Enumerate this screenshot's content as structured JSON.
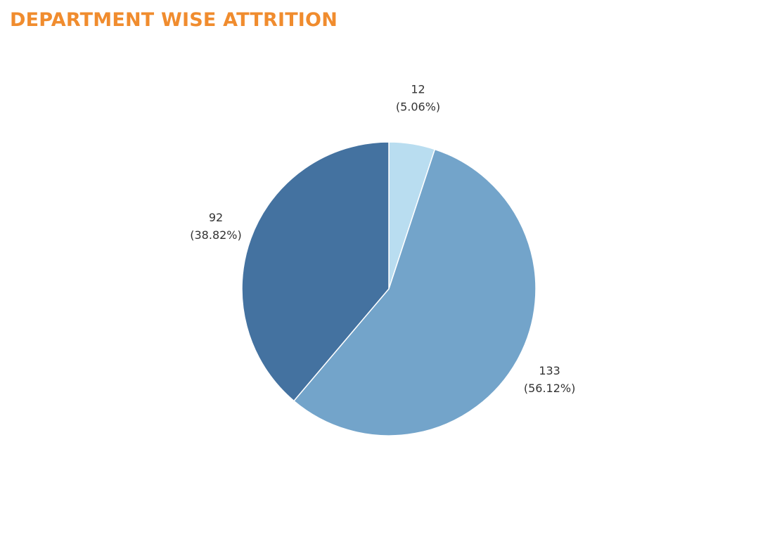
{
  "title": "DEPARTMENT WISE ATTRITION",
  "colors": {
    "title": "#F08C2E",
    "label_text": "#333333"
  },
  "chart_data": {
    "type": "pie",
    "title": "DEPARTMENT WISE ATTRITION",
    "start_angle_deg": 0,
    "direction": "clockwise",
    "slices": [
      {
        "value": 12,
        "percent": "5.06%",
        "value_label": "12",
        "percent_label": "(5.06%)",
        "color": "#B9DDF0"
      },
      {
        "value": 133,
        "percent": "56.12%",
        "value_label": "133",
        "percent_label": "(56.12%)",
        "color": "#73A4CA"
      },
      {
        "value": 92,
        "percent": "38.82%",
        "value_label": "92",
        "percent_label": "(38.82%)",
        "color": "#4472A0"
      }
    ]
  }
}
